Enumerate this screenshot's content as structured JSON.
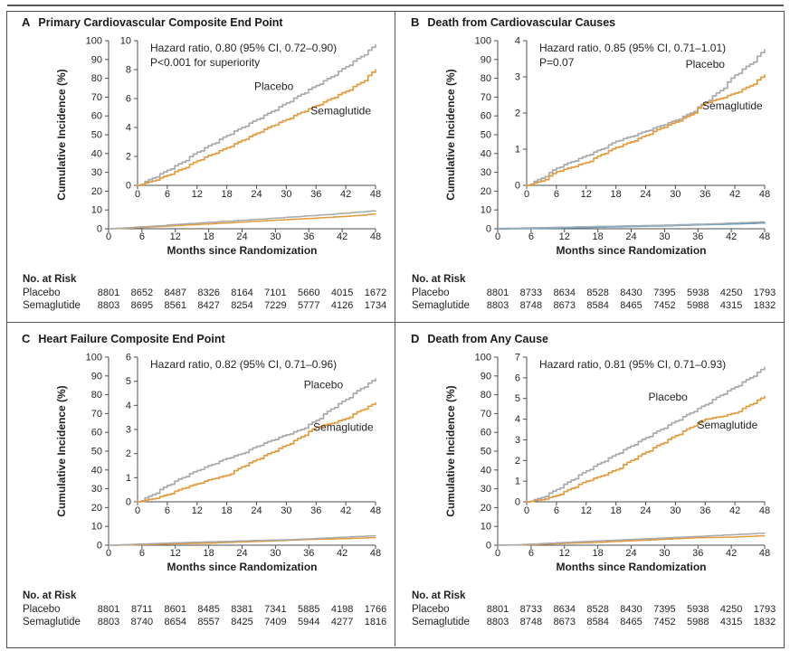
{
  "figure": {
    "ylabel": "Cumulative Incidence (%)",
    "xlabel": "Months since Randomization",
    "risk_header": "No. at Risk",
    "colors": {
      "placebo": "#a7a9ac",
      "semaglutide": "#e39b3d",
      "overlay_blue": "#55a0d2",
      "axis": "#4c4d4f",
      "text": "#231f20",
      "frame": "#4d4e50",
      "top_rule": "#55565a"
    }
  },
  "chart_data": [
    {
      "panel": "A",
      "title": "Primary Cardiovascular Composite End Point",
      "type": "line",
      "annotation": [
        "Hazard ratio, 0.80 (95% CI, 0.72–0.90)",
        "P<0.001 for superiority"
      ],
      "xlabel": "Months since Randomization",
      "ylabel": "Cumulative Incidence (%)",
      "x": [
        0,
        3,
        6,
        9,
        12,
        15,
        18,
        21,
        24,
        27,
        30,
        33,
        36,
        39,
        42,
        45,
        48
      ],
      "xticks": [
        0,
        6,
        12,
        18,
        24,
        30,
        36,
        42,
        48
      ],
      "outer_ylim": [
        0,
        100
      ],
      "outer_yticks": [
        0,
        10,
        20,
        30,
        40,
        50,
        60,
        70,
        80,
        90,
        100
      ],
      "inset_ylim": [
        0,
        10
      ],
      "inset_yticks": [
        0,
        2,
        4,
        6,
        8,
        10
      ],
      "series": [
        {
          "name": "Placebo",
          "color_key": "placebo",
          "values": [
            0,
            0.5,
            1.05,
            1.6,
            2.3,
            2.85,
            3.45,
            4.0,
            4.55,
            5.1,
            5.7,
            6.3,
            6.9,
            7.5,
            8.2,
            8.9,
            9.7
          ],
          "label_pos": {
            "x": 27.5,
            "y": 6.6
          }
        },
        {
          "name": "Semaglutide",
          "color_key": "semaglutide",
          "values": [
            0,
            0.3,
            0.7,
            1.15,
            1.7,
            2.15,
            2.6,
            3.1,
            3.6,
            4.1,
            4.55,
            5.05,
            5.5,
            6.0,
            6.5,
            7.1,
            8.0
          ],
          "label_pos": {
            "x": 41,
            "y": 4.9
          }
        }
      ],
      "risk_table": {
        "rows": [
          {
            "label": "Placebo",
            "values": [
              8801,
              8652,
              8487,
              8326,
              8164,
              7101,
              5660,
              4015,
              1672
            ]
          },
          {
            "label": "Semaglutide",
            "values": [
              8803,
              8695,
              8561,
              8427,
              8254,
              7229,
              5777,
              4126,
              1734
            ]
          }
        ]
      }
    },
    {
      "panel": "B",
      "title": "Death from Cardiovascular Causes",
      "type": "line",
      "annotation": [
        "Hazard ratio, 0.85 (95% CI, 0.71–1.01)",
        "P=0.07"
      ],
      "xlabel": "Months since Randomization",
      "ylabel": "Cumulative Incidence (%)",
      "x": [
        0,
        3,
        6,
        9,
        12,
        15,
        18,
        21,
        24,
        27,
        30,
        33,
        36,
        39,
        42,
        45,
        48
      ],
      "xticks": [
        0,
        6,
        12,
        18,
        24,
        30,
        36,
        42,
        48
      ],
      "outer_ylim": [
        0,
        100
      ],
      "outer_yticks": [
        0,
        10,
        20,
        30,
        40,
        50,
        60,
        70,
        80,
        90,
        100
      ],
      "inset_ylim": [
        0,
        4
      ],
      "inset_yticks": [
        0,
        1,
        2,
        3,
        4
      ],
      "series": [
        {
          "name": "Placebo",
          "color_key": "placebo",
          "values": [
            0,
            0.2,
            0.48,
            0.65,
            0.82,
            1.0,
            1.22,
            1.35,
            1.5,
            1.65,
            1.8,
            2.0,
            2.3,
            2.62,
            3.05,
            3.35,
            3.75
          ],
          "label_pos": {
            "x": 36,
            "y": 3.25
          }
        },
        {
          "name": "Semaglutide",
          "color_key": "semaglutide",
          "values": [
            0,
            0.12,
            0.38,
            0.5,
            0.63,
            0.85,
            1.05,
            1.2,
            1.38,
            1.58,
            1.75,
            1.95,
            2.28,
            2.4,
            2.55,
            2.75,
            3.05
          ],
          "label_pos": {
            "x": 41.5,
            "y": 2.1
          }
        }
      ],
      "mini_overlay": {
        "color_key": "overlay_blue",
        "values": [
          0,
          0.12,
          0.3,
          0.45,
          0.6,
          0.8,
          1.0,
          1.18,
          1.35,
          1.55,
          1.72,
          1.95,
          2.25,
          2.45,
          2.7,
          3.0,
          3.4
        ]
      },
      "risk_table": {
        "rows": [
          {
            "label": "Placebo",
            "values": [
              8801,
              8733,
              8634,
              8528,
              8430,
              7395,
              5938,
              4250,
              1793
            ]
          },
          {
            "label": "Semaglutide",
            "values": [
              8803,
              8748,
              8673,
              8584,
              8465,
              7452,
              5988,
              4315,
              1832
            ]
          }
        ]
      }
    },
    {
      "panel": "C",
      "title": "Heart Failure Composite End Point",
      "type": "line",
      "annotation": [
        "Hazard ratio, 0.82 (95% CI, 0.71–0.96)"
      ],
      "xlabel": "Months since Randomization",
      "ylabel": "Cumulative Incidence (%)",
      "x": [
        0,
        3,
        6,
        9,
        12,
        15,
        18,
        21,
        24,
        27,
        30,
        33,
        36,
        39,
        42,
        45,
        48
      ],
      "xticks": [
        0,
        6,
        12,
        18,
        24,
        30,
        36,
        42,
        48
      ],
      "outer_ylim": [
        0,
        100
      ],
      "outer_yticks": [
        0,
        10,
        20,
        30,
        40,
        50,
        60,
        70,
        80,
        90,
        100
      ],
      "inset_ylim": [
        0,
        6
      ],
      "inset_yticks": [
        0,
        1,
        2,
        3,
        4,
        5,
        6
      ],
      "series": [
        {
          "name": "Placebo",
          "color_key": "placebo",
          "values": [
            0,
            0.3,
            0.68,
            1.0,
            1.3,
            1.55,
            1.8,
            2.0,
            2.3,
            2.55,
            2.78,
            3.0,
            3.38,
            3.85,
            4.25,
            4.7,
            5.1
          ],
          "label_pos": {
            "x": 37.5,
            "y": 4.7
          }
        },
        {
          "name": "Semaglutide",
          "color_key": "semaglutide",
          "values": [
            0,
            0.12,
            0.3,
            0.55,
            0.75,
            0.95,
            1.1,
            1.45,
            1.75,
            2.05,
            2.35,
            2.7,
            3.1,
            3.25,
            3.45,
            3.8,
            4.1
          ],
          "label_pos": {
            "x": 41.5,
            "y": 2.95
          }
        }
      ],
      "risk_table": {
        "rows": [
          {
            "label": "Placebo",
            "values": [
              8801,
              8711,
              8601,
              8485,
              8381,
              7341,
              5885,
              4198,
              1766
            ]
          },
          {
            "label": "Semaglutide",
            "values": [
              8803,
              8740,
              8654,
              8557,
              8425,
              7409,
              5944,
              4277,
              1816
            ]
          }
        ]
      }
    },
    {
      "panel": "D",
      "title": "Death from Any Cause",
      "type": "line",
      "annotation": [
        "Hazard ratio, 0.81 (95% CI, 0.71–0.93)"
      ],
      "xlabel": "Months since Randomization",
      "ylabel": "Cumulative Incidence (%)",
      "x": [
        0,
        3,
        6,
        9,
        12,
        15,
        18,
        21,
        24,
        27,
        30,
        33,
        36,
        39,
        42,
        45,
        48
      ],
      "xticks": [
        0,
        6,
        12,
        18,
        24,
        30,
        36,
        42,
        48
      ],
      "outer_ylim": [
        0,
        100
      ],
      "outer_yticks": [
        0,
        10,
        20,
        30,
        40,
        50,
        60,
        70,
        80,
        90,
        100
      ],
      "inset_ylim": [
        0,
        7
      ],
      "inset_yticks": [
        0,
        1,
        2,
        3,
        4,
        5,
        6,
        7
      ],
      "series": [
        {
          "name": "Placebo",
          "color_key": "placebo",
          "values": [
            0,
            0.2,
            0.6,
            1.05,
            1.5,
            1.9,
            2.3,
            2.7,
            3.1,
            3.5,
            3.9,
            4.3,
            4.7,
            5.15,
            5.55,
            6.0,
            6.5
          ],
          "label_pos": {
            "x": 28.5,
            "y": 4.9
          }
        },
        {
          "name": "Semaglutide",
          "color_key": "semaglutide",
          "values": [
            0,
            0.1,
            0.3,
            0.65,
            1.0,
            1.25,
            1.55,
            2.0,
            2.4,
            2.8,
            3.2,
            3.6,
            4.0,
            4.12,
            4.3,
            4.7,
            5.1
          ],
          "label_pos": {
            "x": 40.5,
            "y": 3.55
          }
        }
      ],
      "risk_table": {
        "rows": [
          {
            "label": "Placebo",
            "values": [
              8801,
              8733,
              8634,
              8528,
              8430,
              7395,
              5938,
              4250,
              1793
            ]
          },
          {
            "label": "Semaglutide",
            "values": [
              8803,
              8748,
              8673,
              8584,
              8465,
              7452,
              5988,
              4315,
              1832
            ]
          }
        ]
      }
    }
  ]
}
